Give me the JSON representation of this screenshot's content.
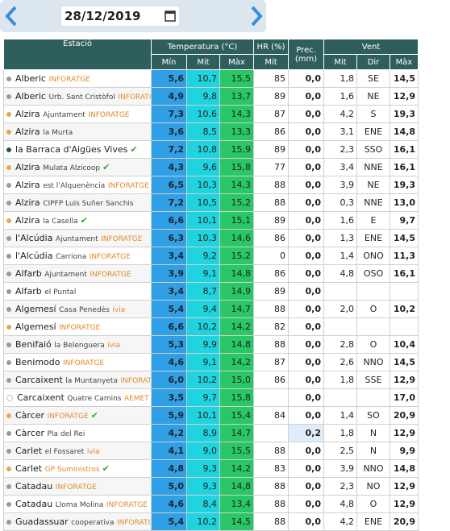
{
  "header": {
    "date": "28/12/2019"
  },
  "table": {
    "columns": {
      "station": "Estació",
      "temperature": "Temperatura (°C)",
      "humidity": "HR (%)",
      "precipitation": "Prec. (mm)",
      "wind": "Vent",
      "t_min": "Mín",
      "t_mit": "Mit",
      "t_max": "Màx",
      "hr_mit": "Mit",
      "w_mit": "Mit",
      "w_dir": "Dir",
      "w_max": "Màx"
    },
    "rows": [
      {
        "dot": "#9a9a9a",
        "name": "Alberic",
        "brand": "INFORATGE",
        "min": "5,6",
        "mit": "10,7",
        "max": "15,5",
        "hr": "85",
        "prec": "0,0",
        "wmit": "1,8",
        "dir": "SE",
        "wmax": "14,5"
      },
      {
        "dot": "#9a9a9a",
        "name": "Alberic",
        "place": "Urb. Sant Cristòfol",
        "brand": "INFORATGE",
        "min": "4,9",
        "mit": "9,8",
        "max": "13,7",
        "hr": "89",
        "prec": "0,0",
        "wmit": "1,6",
        "dir": "NE",
        "wmax": "12,9"
      },
      {
        "dot": "#e8a84a",
        "name": "Alzira",
        "place": "Ajuntament",
        "brand": "INFORATGE",
        "min": "7,3",
        "mit": "10,6",
        "max": "14,3",
        "hr": "87",
        "prec": "0,0",
        "wmit": "4,2",
        "dir": "S",
        "wmax": "19,3"
      },
      {
        "dot": "#e8a84a",
        "name": "Alzira",
        "place": "la Murta",
        "min": "3,6",
        "mit": "8,5",
        "max": "13,3",
        "hr": "86",
        "prec": "0,0",
        "wmit": "3,1",
        "dir": "ENE",
        "wmax": "14,8"
      },
      {
        "dot": "#1f5a48",
        "name": "la Barraca d'Aigües Vives",
        "check": true,
        "min": "7,2",
        "mit": "10,8",
        "max": "15,9",
        "hr": "89",
        "prec": "0,0",
        "wmit": "2,3",
        "dir": "SSO",
        "wmax": "16,1"
      },
      {
        "dot": "#e8a84a",
        "name": "Alzira",
        "place": "Mulata Alzicoop",
        "check": true,
        "min": "4,3",
        "mit": "9,6",
        "max": "15,8",
        "hr": "77",
        "prec": "0,0",
        "wmit": "3,4",
        "dir": "NNE",
        "wmax": "16,1"
      },
      {
        "dot": "#9a9a9a",
        "name": "Alzira",
        "place": "est l'Alquenència",
        "brand": "INFORATGE",
        "min": "6,5",
        "mit": "10,3",
        "max": "14,3",
        "hr": "88",
        "prec": "0,0",
        "wmit": "3,9",
        "dir": "NE",
        "wmax": "19,3"
      },
      {
        "dot": "#9a9a9a",
        "name": "Alzira",
        "place": "CIPFP Luis Suñer Sanchis",
        "min": "7,2",
        "mit": "10,5",
        "max": "15,2",
        "hr": "88",
        "prec": "0,0",
        "wmit": "0,3",
        "dir": "NNE",
        "wmax": "13,0"
      },
      {
        "dot": "#e8a84a",
        "name": "Alzira",
        "place": "la Casella",
        "check": true,
        "min": "6,6",
        "mit": "10,1",
        "max": "15,1",
        "hr": "89",
        "prec": "0,0",
        "wmit": "1,6",
        "dir": "E",
        "wmax": "9,7"
      },
      {
        "dot": "#9a9a9a",
        "name": "l'Alcúdia",
        "place": "Ajuntament",
        "brand": "INFORATGE",
        "min": "6,3",
        "mit": "10,3",
        "max": "14,6",
        "hr": "86",
        "prec": "0,0",
        "wmit": "1,3",
        "dir": "ENE",
        "wmax": "14,5"
      },
      {
        "dot": "#9a9a9a",
        "name": "l'Alcúdia",
        "place": "Carriona",
        "brand": "INFORATGE",
        "min": "3,4",
        "mit": "9,2",
        "max": "15,2",
        "hr": "0",
        "prec": "0,0",
        "wmit": "1,4",
        "dir": "ONO",
        "wmax": "11,3"
      },
      {
        "dot": "#9a9a9a",
        "name": "Alfarb",
        "place": "Ajuntament",
        "brand": "INFORATGE",
        "min": "3,9",
        "mit": "9,1",
        "max": "14,8",
        "hr": "86",
        "prec": "0,0",
        "wmit": "4,8",
        "dir": "OSO",
        "wmax": "16,1"
      },
      {
        "dot": "#9a9a9a",
        "name": "Alfarb",
        "place": "el Puntal",
        "min": "3,4",
        "mit": "8,7",
        "max": "14,9",
        "hr": "89",
        "prec": "0,0",
        "wmit": null,
        "dir": null,
        "wmax": null
      },
      {
        "dot": "#9a9a9a",
        "name": "Algemesí",
        "place": "Casa Penedès",
        "brand": "ivia",
        "min": "5,4",
        "mit": "9,4",
        "max": "14,7",
        "hr": "88",
        "prec": "0,0",
        "wmit": "2,0",
        "dir": "O",
        "wmax": "10,2"
      },
      {
        "dot": "#e8a84a",
        "name": "Algemesí",
        "brand": "INFORATGE",
        "min": "6,6",
        "mit": "10,2",
        "max": "14,2",
        "hr": "82",
        "prec": "0,0",
        "wmit": null,
        "dir": null,
        "wmax": null
      },
      {
        "dot": "#9a9a9a",
        "name": "Benifaió",
        "place": "la Belenguera",
        "brand": "ivia",
        "min": "5,3",
        "mit": "9,9",
        "max": "14,8",
        "hr": "88",
        "prec": "0,0",
        "wmit": "2,8",
        "dir": "O",
        "wmax": "10,4"
      },
      {
        "dot": "#9a9a9a",
        "name": "Benimodo",
        "brand": "INFORATGE",
        "min": "4,6",
        "mit": "9,1",
        "max": "14,2",
        "hr": "87",
        "prec": "0,0",
        "wmit": "2,6",
        "dir": "NNO",
        "wmax": "14,5"
      },
      {
        "dot": "#9a9a9a",
        "name": "Carcaixent",
        "place": "la Muntanyeta",
        "brand": "INFORATGE",
        "min": "6,0",
        "mit": "10,2",
        "max": "15,0",
        "hr": "86",
        "prec": "0,0",
        "wmit": "1,8",
        "dir": "SSE",
        "wmax": "12,9"
      },
      {
        "dot": "#ffffff",
        "name": "Carcaixent",
        "place": "Quatre Camins",
        "brand": "AEMET",
        "min": "3,5",
        "mit": "9,7",
        "max": "15,8",
        "hr": null,
        "prec": "0,0",
        "wmit": null,
        "dir": null,
        "wmax": "17,0"
      },
      {
        "dot": "#e8a84a",
        "name": "Càrcer",
        "brand": "INFORATGE",
        "check": true,
        "min": "5,9",
        "mit": "10,1",
        "max": "15,4",
        "hr": "84",
        "prec": "0,0",
        "wmit": "1,4",
        "dir": "SO",
        "wmax": "20,9"
      },
      {
        "dot": "#9a9a9a",
        "name": "Càrcer",
        "place": "Pla del Rei",
        "min": "4,2",
        "mit": "8,9",
        "max": "14,7",
        "hr": null,
        "prec": "0,2",
        "wmit": "1,8",
        "dir": "N",
        "wmax": "12,9"
      },
      {
        "dot": "#9a9a9a",
        "name": "Carlet",
        "place": "el Fossaret",
        "brand": "ivia",
        "min": "4,1",
        "mit": "9,0",
        "max": "15,5",
        "hr": "88",
        "prec": "0,0",
        "wmit": "2,5",
        "dir": "N",
        "wmax": "9,9"
      },
      {
        "dot": "#e8a84a",
        "name": "Carlet",
        "brand": "GP Suministros",
        "check": true,
        "min": "4,8",
        "mit": "9,3",
        "max": "14,2",
        "hr": "83",
        "prec": "0,0",
        "wmit": "3,9",
        "dir": "NNO",
        "wmax": "14,8"
      },
      {
        "dot": "#9a9a9a",
        "name": "Catadau",
        "brand": "INFORATGE",
        "min": "5,0",
        "mit": "9,3",
        "max": "14,8",
        "hr": "88",
        "prec": "0,0",
        "wmit": "2,3",
        "dir": "NO",
        "wmax": "12,9"
      },
      {
        "dot": "#9a9a9a",
        "name": "Catadau",
        "place": "Lloma Molina",
        "brand": "INFORATGE",
        "min": "4,6",
        "mit": "8,4",
        "max": "13,4",
        "hr": "88",
        "prec": "0,0",
        "wmit": "4,8",
        "dir": "O",
        "wmax": "12,9"
      },
      {
        "dot": "#9a9a9a",
        "name": "Guadassuar",
        "place": "cooperativa",
        "brand": "INFORATGE",
        "min": "5,4",
        "mit": "10,2",
        "max": "14,5",
        "hr": "88",
        "prec": "0,0",
        "wmit": "4,2",
        "dir": "ENE",
        "wmax": "20,9"
      }
    ]
  }
}
